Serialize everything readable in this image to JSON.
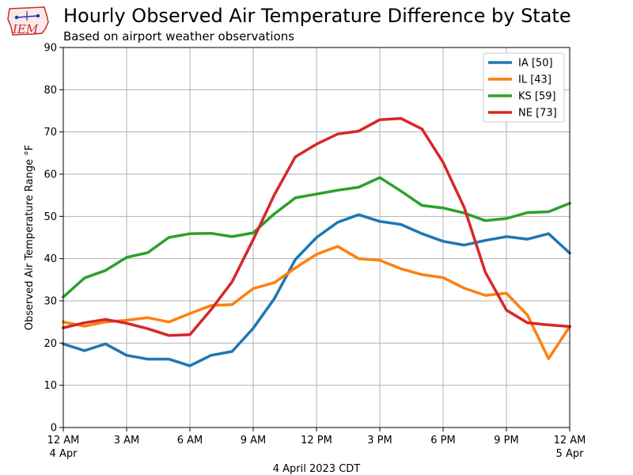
{
  "logo": {
    "text": "IEM"
  },
  "colors": {
    "IA": "#1f77b4",
    "IL": "#ff7f0e",
    "KS": "#2ca02c",
    "NE": "#d62728",
    "grid": "#b0b0b0"
  },
  "chart_data": {
    "type": "line",
    "title": "Hourly Observed Air Temperature Difference by State",
    "subtitle": "Based on airport weather observations",
    "xlabel": "4 April 2023 CDT",
    "ylabel": "Observed Air Temperature Range °F",
    "ylim": [
      0,
      90
    ],
    "xlim": [
      0,
      24
    ],
    "grid": true,
    "legend_position": "top-right",
    "y_ticks": [
      0,
      10,
      20,
      30,
      40,
      50,
      60,
      70,
      80,
      90
    ],
    "x_ticks": [
      {
        "hour": 0,
        "line1": "12 AM",
        "line2": "4 Apr"
      },
      {
        "hour": 3,
        "line1": "3 AM",
        "line2": ""
      },
      {
        "hour": 6,
        "line1": "6 AM",
        "line2": ""
      },
      {
        "hour": 9,
        "line1": "9 AM",
        "line2": ""
      },
      {
        "hour": 12,
        "line1": "12 PM",
        "line2": ""
      },
      {
        "hour": 15,
        "line1": "3 PM",
        "line2": ""
      },
      {
        "hour": 18,
        "line1": "6 PM",
        "line2": ""
      },
      {
        "hour": 21,
        "line1": "9 PM",
        "line2": ""
      },
      {
        "hour": 24,
        "line1": "12 AM",
        "line2": "5 Apr"
      }
    ],
    "x": [
      0,
      1,
      2,
      3,
      4,
      5,
      6,
      7,
      8,
      9,
      10,
      11,
      12,
      13,
      14,
      15,
      16,
      17,
      18,
      19,
      20,
      21,
      22,
      23,
      24
    ],
    "series": [
      {
        "name": "IA [50]",
        "key": "IA",
        "values": [
          19.8,
          18.2,
          19.8,
          17.1,
          16.2,
          16.2,
          14.6,
          17.1,
          18.0,
          23.5,
          30.5,
          39.8,
          45.0,
          48.6,
          50.4,
          48.8,
          48.1,
          45.9,
          44.1,
          43.2,
          44.3,
          45.2,
          44.6,
          45.9,
          41.3
        ]
      },
      {
        "name": "IL [43]",
        "key": "IL",
        "values": [
          25.0,
          24.0,
          25.0,
          25.4,
          26.0,
          25.0,
          27.0,
          28.9,
          29.1,
          32.9,
          34.3,
          37.8,
          41.0,
          42.9,
          40.0,
          39.6,
          37.6,
          36.2,
          35.5,
          33.0,
          31.3,
          31.8,
          26.6,
          16.3,
          23.9
        ]
      },
      {
        "name": "KS [59]",
        "key": "KS",
        "values": [
          30.9,
          35.4,
          37.2,
          40.3,
          41.4,
          45.0,
          45.9,
          46.0,
          45.2,
          46.1,
          50.6,
          54.4,
          55.3,
          56.2,
          56.9,
          59.2,
          56.0,
          52.6,
          52.0,
          50.8,
          49.0,
          49.5,
          50.9,
          51.1,
          53.1
        ]
      },
      {
        "name": "NE [73]",
        "key": "NE",
        "values": [
          23.6,
          24.8,
          25.6,
          24.7,
          23.4,
          21.8,
          22.0,
          27.9,
          34.5,
          44.5,
          55.1,
          64.1,
          67.1,
          69.5,
          70.2,
          72.9,
          73.2,
          70.7,
          62.8,
          52.1,
          36.8,
          27.8,
          24.8,
          24.3,
          23.9
        ]
      }
    ]
  }
}
